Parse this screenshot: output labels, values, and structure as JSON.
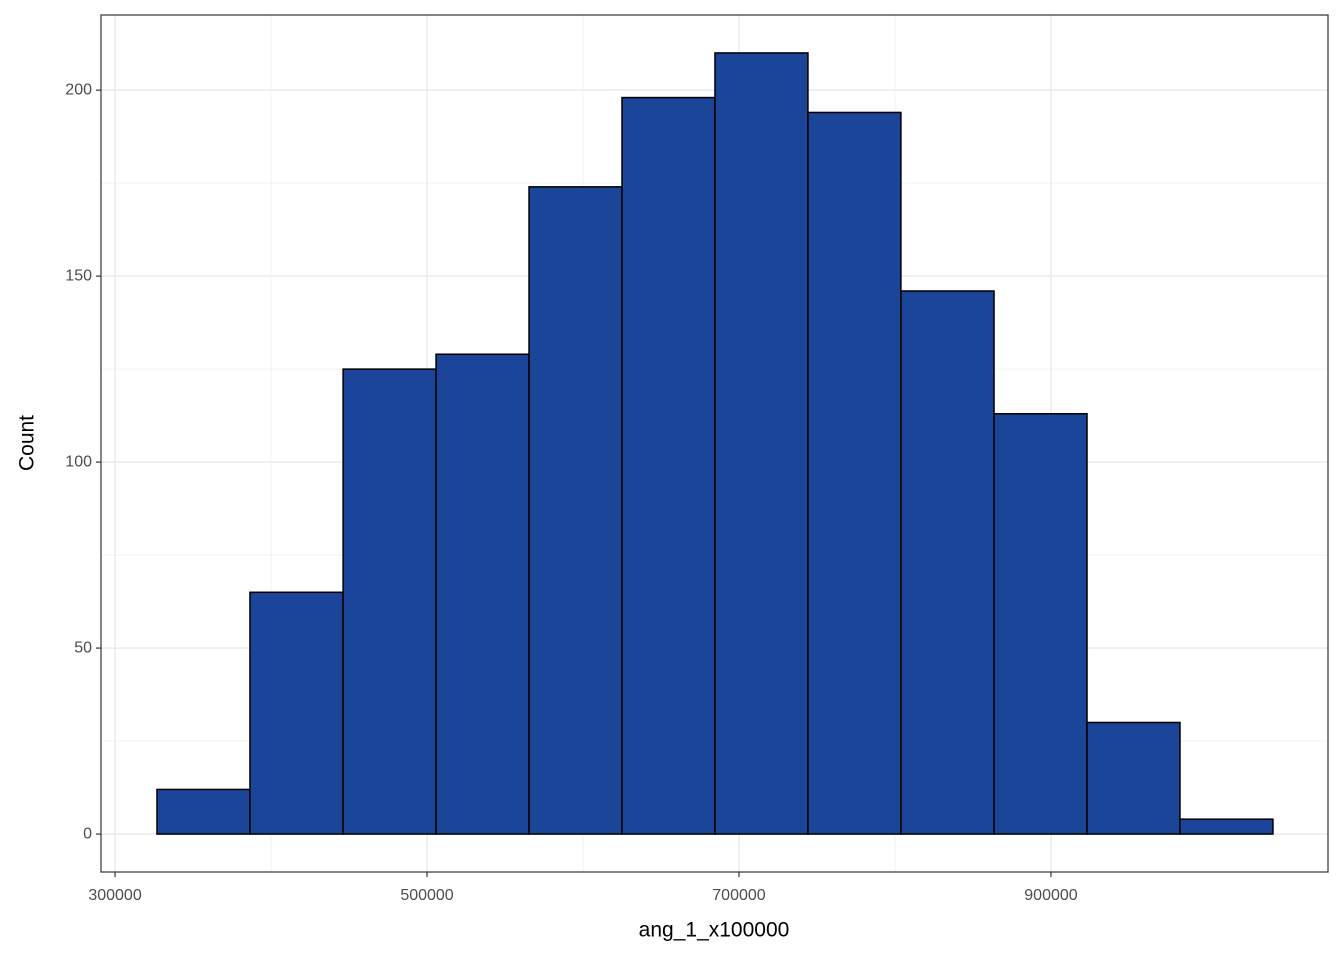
{
  "chart_data": {
    "type": "histogram",
    "x_label": "ang_1_x100000",
    "y_label": "Count",
    "bins": [
      326900,
      386500,
      446200,
      505800,
      565400,
      625000,
      684600,
      744200,
      803800,
      863500,
      923100,
      982700,
      1042300
    ],
    "values": [
      12,
      65,
      125,
      129,
      174,
      198,
      210,
      194,
      146,
      113,
      30,
      4
    ],
    "color": "#1a4599",
    "xlim": [
      291000,
      1077600
    ],
    "ylim": [
      -10.2,
      220.2
    ],
    "xticks": [
      300000,
      500000,
      700000,
      900000
    ],
    "yticks": [
      0,
      50,
      100,
      150,
      200
    ],
    "grid": true
  }
}
